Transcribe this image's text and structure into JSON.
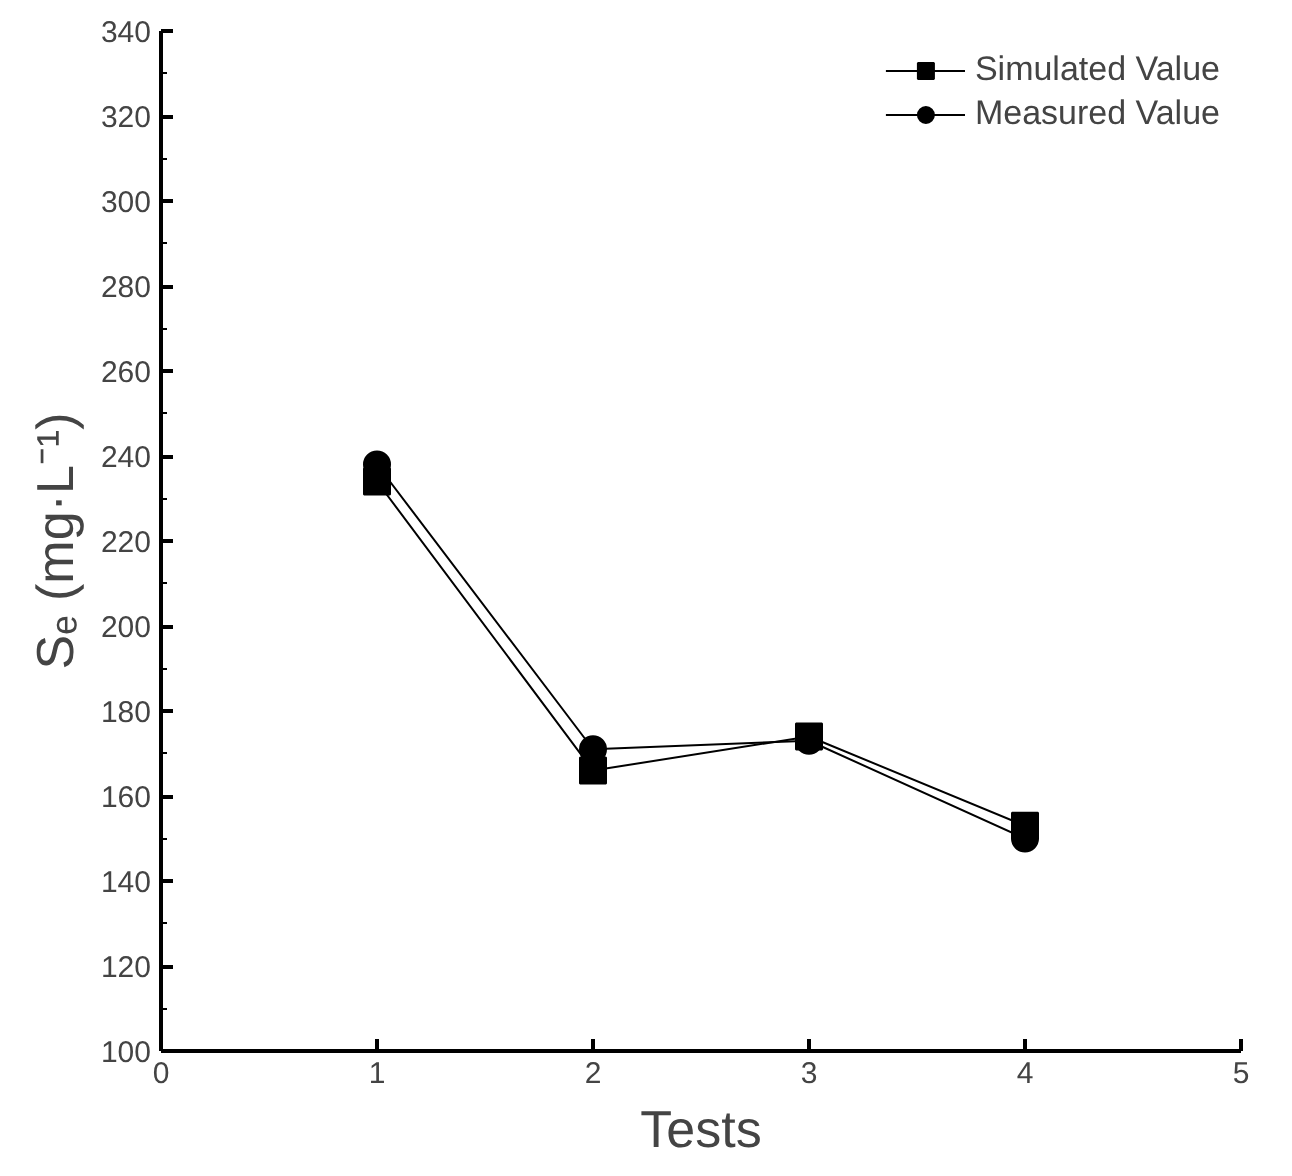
{
  "chart_data": {
    "type": "line",
    "xlabel": "Tests",
    "ylabel": "Sₑ (mg·L⁻¹)",
    "x": [
      1,
      2,
      3,
      4
    ],
    "series": [
      {
        "name": "Simulated Value",
        "color": "#000000",
        "marker": "square",
        "values": [
          234,
          166,
          174,
          153
        ]
      },
      {
        "name": "Measured Value",
        "color": "#000000",
        "marker": "circle",
        "values": [
          238,
          171,
          173,
          150
        ]
      }
    ],
    "xlim": [
      0,
      5
    ],
    "xticks": [
      0,
      1,
      2,
      3,
      4,
      5
    ],
    "ylim": [
      100,
      340
    ],
    "yticks": [
      100,
      120,
      140,
      160,
      180,
      200,
      220,
      240,
      260,
      280,
      300,
      320,
      340
    ],
    "grid": false,
    "legend": "top right",
    "line_style": "solid"
  }
}
